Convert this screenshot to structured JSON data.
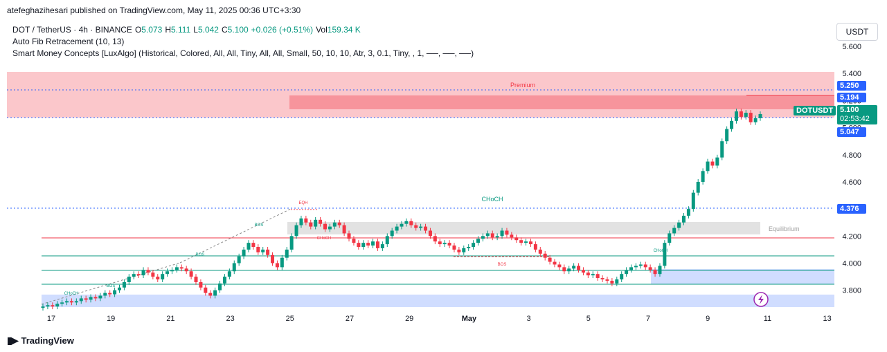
{
  "header": {
    "published_line": "atefeghazihesari published on TradingView.com, May 11, 2025 00:36 UTC+3:30"
  },
  "legend": {
    "symbol": "DOT / TetherUS · 4h · BINANCE",
    "o_label": "O",
    "o_val": "5.073",
    "h_label": "H",
    "h_val": "5.111",
    "l_label": "L",
    "l_val": "5.042",
    "c_label": "C",
    "c_val": "5.100",
    "change": "+0.026 (+0.51%)",
    "vol_label": "Vol",
    "vol_val": "159.34 K",
    "indicator1": "Auto Fib Retracement (10, 13)",
    "indicator2": "Smart Money Concepts [LuxAlgo] (Historical, Colored, All, All, Tiny, All, All, Small, 50, 10, 10, Atr, 3, 0.1, Tiny, , 1, ──, ──, ──)"
  },
  "currency_button": "USDT",
  "footer": {
    "brand": "TradingView"
  },
  "colors": {
    "up": "#089981",
    "down": "#f23645",
    "blue": "#2962ff",
    "premium": "#f23645",
    "demand": "#2962ff"
  },
  "chart_data": {
    "type": "candlestick",
    "symbol": "DOTUSDT",
    "ylim": [
      3.63,
      5.83
    ],
    "y_ticks": [
      "3.800",
      "4.000",
      "4.200",
      "4.400",
      "4.600",
      "4.800",
      "5.000",
      "5.200",
      "5.400",
      "5.600"
    ],
    "x_ticks": [
      "17",
      "19",
      "21",
      "23",
      "25",
      "27",
      "29",
      "May",
      "3",
      "5",
      "7",
      "9",
      "11",
      "13"
    ],
    "price_tags": {
      "level_5250": "5.250",
      "level_5194": "5.194",
      "symbol_tag": "DOTUSDT",
      "last_price": "5.100",
      "countdown": "02:53:42",
      "level_5047": "5.047",
      "level_4376": "4.376"
    },
    "zone_labels": {
      "premium": "Premium",
      "equilibrium": "Equilibrium"
    },
    "structure_labels": {
      "choch_top": "CHoCH",
      "eqh": "EQH",
      "choch_red": "CHoCH",
      "bos_red": "BOS",
      "choch_small": "CHoCH",
      "choch_left": "CHoCH",
      "bos1": "BOS",
      "bos2": "BOS",
      "bos3": "BOS"
    },
    "candles_close": [
      3.68,
      3.69,
      3.68,
      3.7,
      3.71,
      3.72,
      3.71,
      3.72,
      3.74,
      3.73,
      3.75,
      3.74,
      3.76,
      3.78,
      3.77,
      3.8,
      3.82,
      3.86,
      3.9,
      3.92,
      3.91,
      3.95,
      3.93,
      3.9,
      3.88,
      3.92,
      3.94,
      3.95,
      3.97,
      3.96,
      3.94,
      3.9,
      3.86,
      3.82,
      3.78,
      3.76,
      3.8,
      3.85,
      3.9,
      3.94,
      4.0,
      4.05,
      4.1,
      4.15,
      4.12,
      4.08,
      4.1,
      4.06,
      4.0,
      3.97,
      4.04,
      4.1,
      4.2,
      4.28,
      4.33,
      4.3,
      4.27,
      4.32,
      4.29,
      4.25,
      4.27,
      4.3,
      4.28,
      4.22,
      4.18,
      4.15,
      4.12,
      4.15,
      4.13,
      4.16,
      4.11,
      4.14,
      4.2,
      4.24,
      4.27,
      4.29,
      4.31,
      4.28,
      4.26,
      4.27,
      4.24,
      4.2,
      4.16,
      4.14,
      4.15,
      4.13,
      4.1,
      4.08,
      4.11,
      4.12,
      4.15,
      4.18,
      4.2,
      4.22,
      4.19,
      4.2,
      4.24,
      4.21,
      4.19,
      4.17,
      4.15,
      4.16,
      4.14,
      4.1,
      4.07,
      4.04,
      4.01,
      3.99,
      3.97,
      3.94,
      3.96,
      3.98,
      3.95,
      3.93,
      3.91,
      3.92,
      3.89,
      3.88,
      3.87,
      3.85,
      3.88,
      3.92,
      3.95,
      3.97,
      3.98,
      3.99,
      3.97,
      3.95,
      3.92,
      3.98,
      4.15,
      4.22,
      4.26,
      4.3,
      4.35,
      4.4,
      4.52,
      4.6,
      4.68,
      4.75,
      4.72,
      4.78,
      4.9,
      4.99,
      5.05,
      5.12,
      5.08,
      5.11,
      5.04,
      5.07,
      5.1
    ]
  }
}
